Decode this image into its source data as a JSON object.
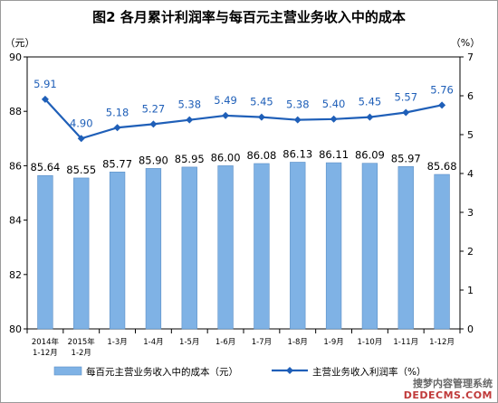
{
  "chart_data": {
    "type": "bar+line",
    "title": "图2  各月累计利润率与每百元主营业务收入中的成本",
    "categories": [
      [
        "2014年",
        "1-12月"
      ],
      [
        "2015年",
        "1-2月"
      ],
      [
        "1-3月"
      ],
      [
        "1-4月"
      ],
      [
        "1-5月"
      ],
      [
        "1-6月"
      ],
      [
        "1-7月"
      ],
      [
        "1-8月"
      ],
      [
        "1-9月"
      ],
      [
        "1-10月"
      ],
      [
        "1-11月"
      ],
      [
        "1-12月"
      ]
    ],
    "left_axis": {
      "unit": "（元）",
      "min": 80,
      "max": 90,
      "ticks": [
        80,
        82,
        84,
        86,
        88,
        90
      ]
    },
    "right_axis": {
      "unit": "（%）",
      "min": 0,
      "max": 7,
      "ticks": [
        0,
        1,
        2,
        3,
        4,
        5,
        6,
        7
      ]
    },
    "series": [
      {
        "name": "每百元主营业务收入中的成本（元）",
        "type": "bar",
        "axis": "left",
        "color": "#7fb2e5",
        "values": [
          85.64,
          85.55,
          85.77,
          85.9,
          85.95,
          86.0,
          86.08,
          86.13,
          86.11,
          86.09,
          85.97,
          85.68
        ],
        "labels": [
          "85.64",
          "85.55",
          "85.77",
          "85.90",
          "85.95",
          "86.00",
          "86.08",
          "86.13",
          "86.11",
          "86.09",
          "85.97",
          "85.68"
        ]
      },
      {
        "name": "主营业务收入利润率（%）",
        "type": "line",
        "axis": "right",
        "color": "#1f5fb8",
        "values": [
          5.91,
          4.9,
          5.18,
          5.27,
          5.38,
          5.49,
          5.45,
          5.38,
          5.4,
          5.45,
          5.57,
          5.76
        ],
        "labels": [
          "5.91",
          "4.90",
          "5.18",
          "5.27",
          "5.38",
          "5.49",
          "5.45",
          "5.38",
          "5.40",
          "5.45",
          "5.57",
          "5.76"
        ]
      }
    ],
    "legend": {
      "position": "bottom"
    },
    "grid": false
  },
  "watermark": {
    "line1": "搜梦内容管理系统",
    "line2": "DEDECMS.COM"
  }
}
